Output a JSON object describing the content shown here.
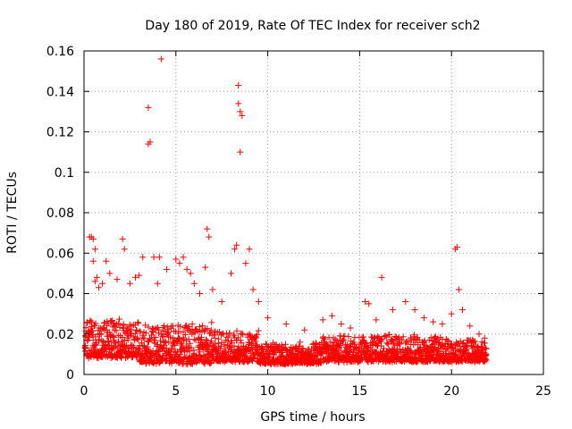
{
  "chart_data": {
    "type": "scatter",
    "title": "Day 180 of 2019, Rate Of TEC Index for receiver sch2",
    "xlabel": "GPS time / hours",
    "ylabel": "ROTI / TECUs",
    "xlim": [
      0,
      25
    ],
    "ylim": [
      0,
      0.16
    ],
    "xticks": [
      0,
      5,
      10,
      15,
      20,
      25
    ],
    "yticks": [
      0,
      0.02,
      0.04,
      0.06,
      0.08,
      0.1,
      0.12,
      0.14,
      0.16
    ],
    "xtick_labels": [
      "0",
      "5",
      "10",
      "15",
      "20",
      "25"
    ],
    "ytick_labels": [
      "0",
      "0.02",
      "0.04",
      "0.06",
      "0.08",
      "0.1",
      "0.12",
      "0.14",
      "0.16"
    ],
    "grid": true,
    "marker": "plus",
    "color": "#ff0000",
    "series": [
      {
        "x": [
          0.3,
          0.4,
          0.5,
          0.6,
          0.5,
          0.7,
          0.6,
          0.8,
          1.0,
          1.2,
          1.4,
          1.8,
          2.1,
          2.2,
          2.5,
          2.8,
          3.0,
          3.2,
          3.5,
          3.5,
          3.6,
          3.8,
          4.0,
          4.1,
          4.2,
          4.5,
          5.0,
          5.2,
          5.4,
          5.6,
          5.8,
          6.0,
          6.3,
          6.6,
          6.7,
          6.8,
          7.0,
          7.5,
          8.0,
          8.2,
          8.3,
          8.4,
          8.4,
          8.5,
          8.5,
          8.6,
          8.8,
          9.0,
          9.2,
          9.5,
          10.0,
          11.0,
          12.0,
          13.0,
          13.5,
          14.0,
          14.5,
          15.3,
          15.5,
          15.9,
          16.2,
          16.8,
          17.5,
          18.0,
          18.5,
          19.0,
          19.5,
          20.0,
          20.2,
          20.3,
          20.4,
          20.6,
          21.0,
          21.5,
          21.8
        ],
        "y": [
          0.068,
          0.068,
          0.067,
          0.062,
          0.056,
          0.048,
          0.046,
          0.043,
          0.045,
          0.056,
          0.05,
          0.047,
          0.067,
          0.062,
          0.045,
          0.048,
          0.049,
          0.058,
          0.132,
          0.114,
          0.115,
          0.058,
          0.045,
          0.058,
          0.156,
          0.052,
          0.057,
          0.055,
          0.058,
          0.052,
          0.05,
          0.045,
          0.04,
          0.053,
          0.072,
          0.068,
          0.042,
          0.036,
          0.05,
          0.062,
          0.064,
          0.143,
          0.134,
          0.13,
          0.11,
          0.128,
          0.055,
          0.062,
          0.042,
          0.036,
          0.028,
          0.025,
          0.022,
          0.027,
          0.029,
          0.025,
          0.023,
          0.036,
          0.035,
          0.027,
          0.048,
          0.032,
          0.036,
          0.032,
          0.028,
          0.026,
          0.025,
          0.03,
          0.062,
          0.063,
          0.042,
          0.032,
          0.024,
          0.02,
          0.018
        ]
      }
    ]
  }
}
